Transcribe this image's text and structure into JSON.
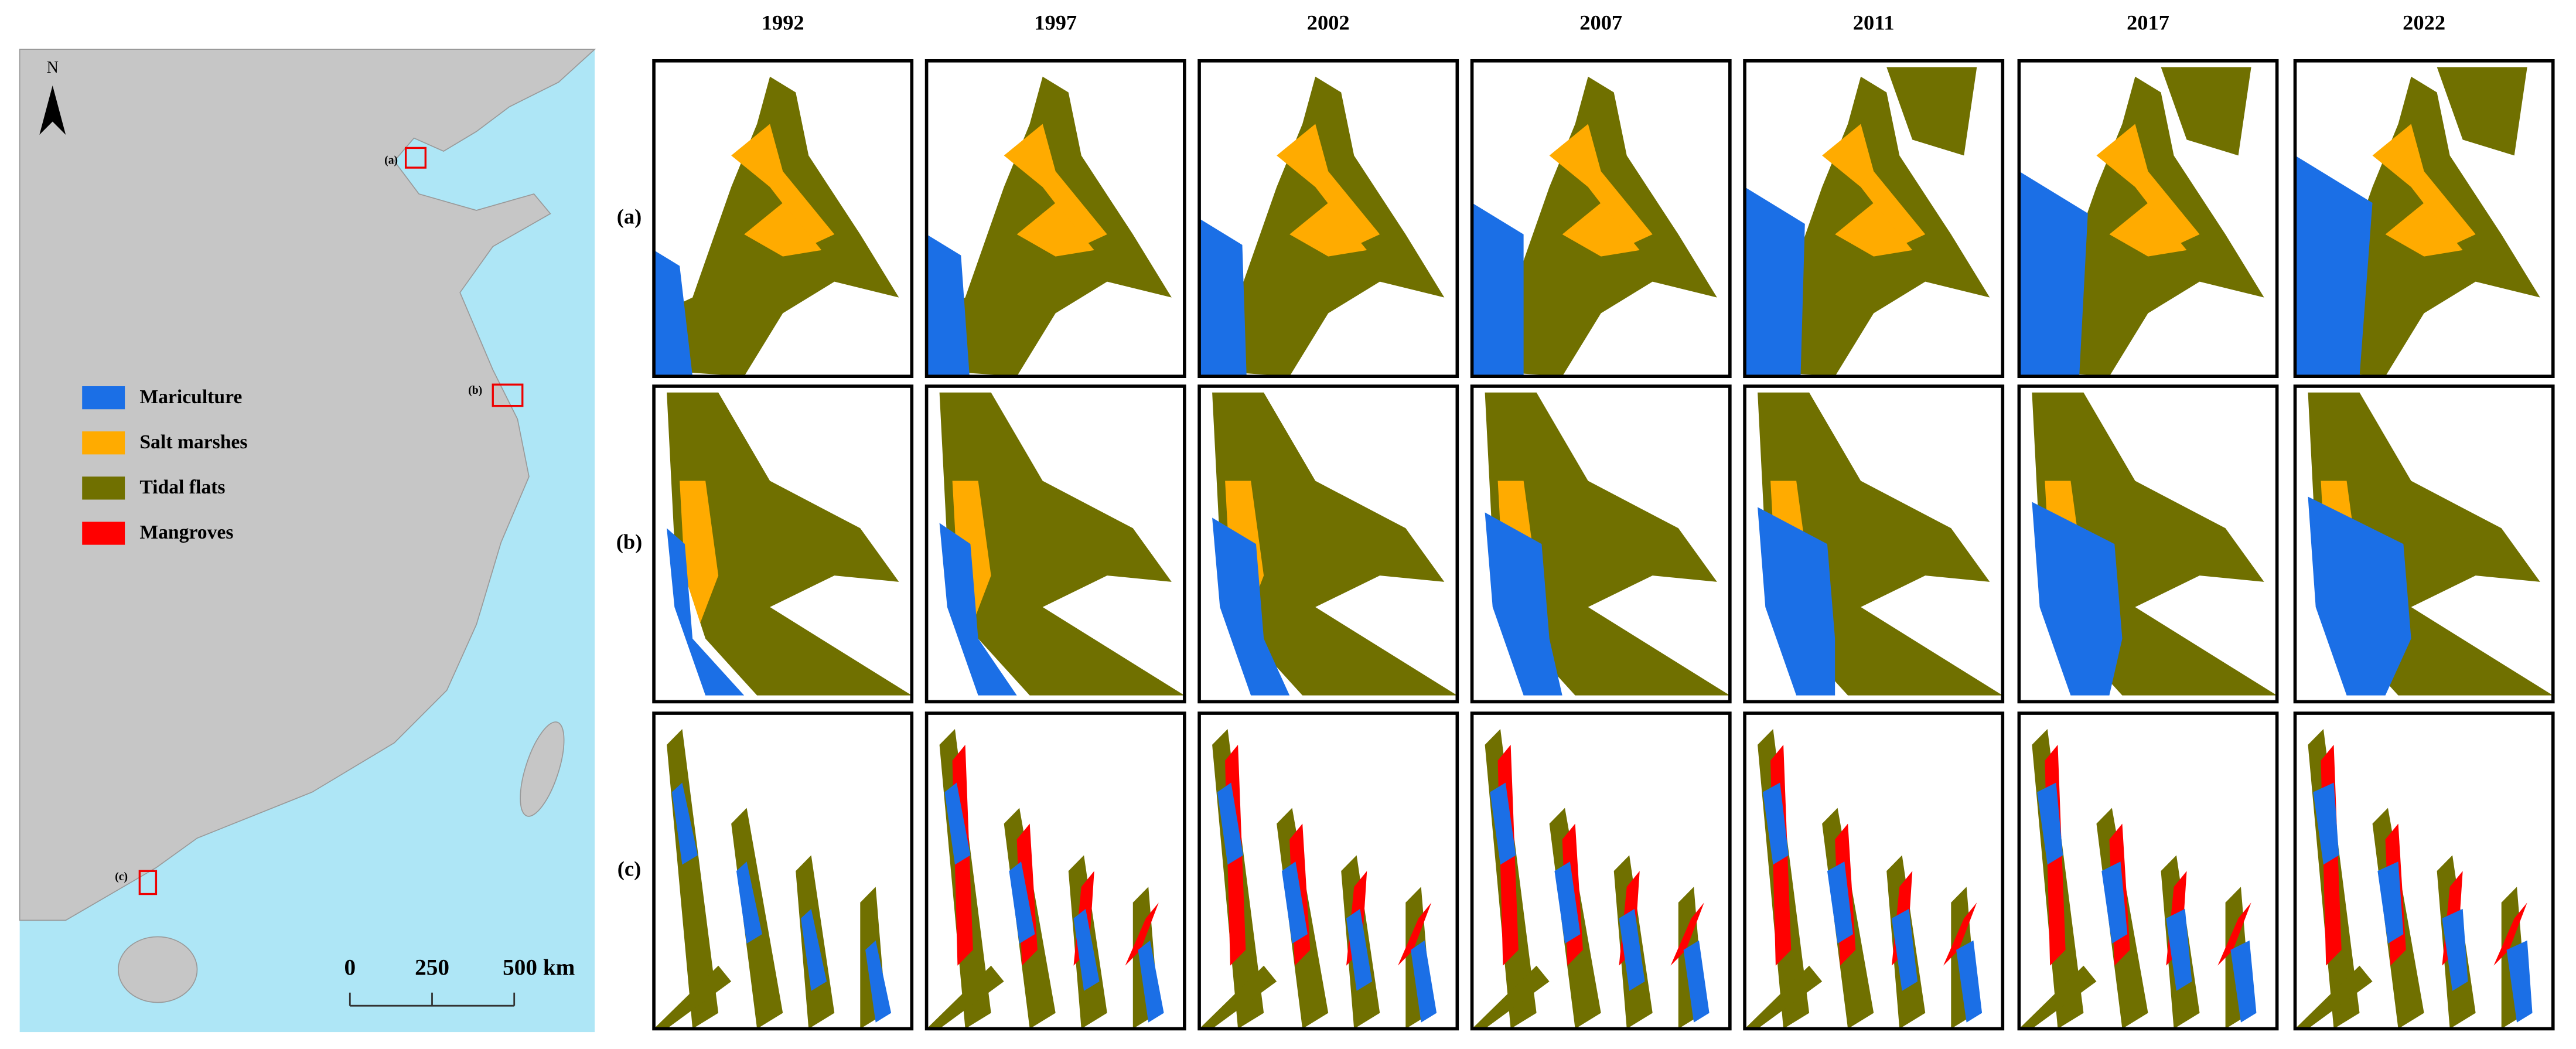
{
  "map": {
    "north": "N",
    "regions": [
      "(a)",
      "(b)",
      "(c)"
    ],
    "legend": [
      {
        "label": "Mariculture",
        "color": "#1b6fe6"
      },
      {
        "label": "Salt marshes",
        "color": "#ffab00"
      },
      {
        "label": "Tidal flats",
        "color": "#707000"
      },
      {
        "label": "Mangroves",
        "color": "#ff0000"
      }
    ],
    "scale_bar": [
      "0",
      "250",
      "500 km"
    ]
  },
  "panels": {
    "years": [
      "1992",
      "1997",
      "2002",
      "2007",
      "2011",
      "2017",
      "2022"
    ],
    "rows": [
      "(a)",
      "(b)",
      "(c)"
    ]
  }
}
